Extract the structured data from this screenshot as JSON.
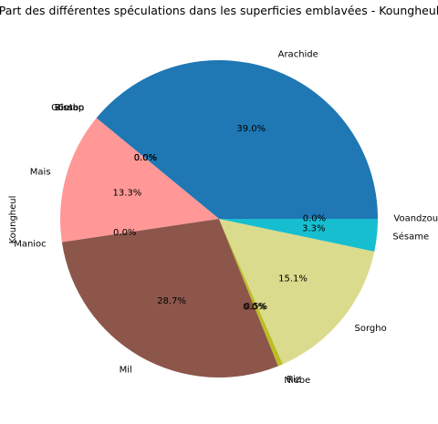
{
  "chart_data": {
    "type": "pie",
    "title": "Part des différentes spéculations dans les superficies emblavées - Koungheul",
    "ylabel": "Koungheul",
    "categories": [
      "Arachide",
      "Bissap",
      "Coton",
      "Gombo",
      "Mais",
      "Manioc",
      "Mil",
      "Niebe",
      "Riz",
      "Sorgho",
      "Sésame",
      "Voandzou"
    ],
    "values": [
      39.0,
      0.0,
      0.0,
      0.0,
      13.3,
      0.0,
      28.7,
      0.0,
      0.5,
      15.1,
      3.3,
      0.0
    ],
    "pct_labels": [
      "39.0%",
      "0.0%",
      "0.0%",
      "0.0%",
      "13.3%",
      "0.0%",
      "28.7%",
      "0.0%",
      "0.5%",
      "15.1%",
      "3.3%",
      "0.0%"
    ],
    "colors": [
      "#1f77b4",
      "#ff7f0e",
      "#2ca02c",
      "#d62728",
      "#ff9896",
      "#9467bd",
      "#8c564b",
      "#e377c2",
      "#bcbd22",
      "#dbdb8d",
      "#17becf",
      "#aec7e8"
    ],
    "start_angle_deg": 0,
    "direction": "counterclockwise"
  }
}
